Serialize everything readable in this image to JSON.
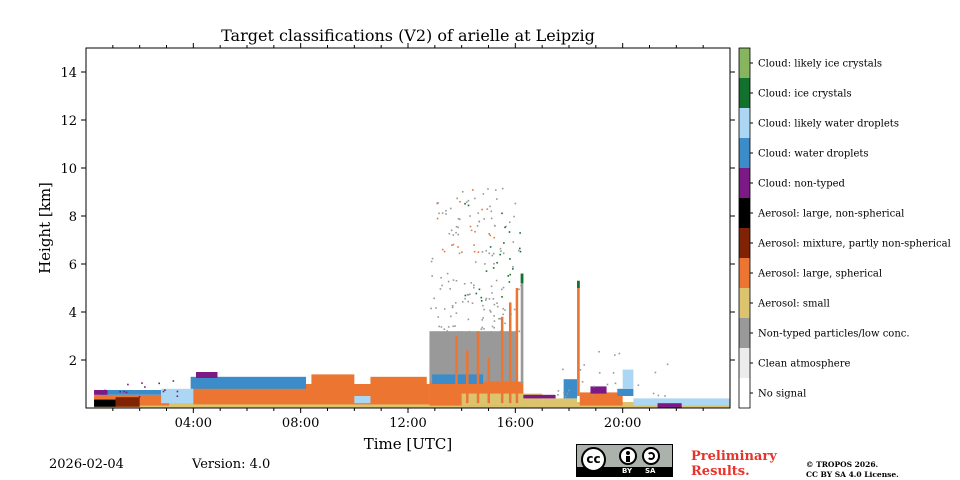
{
  "chart_data": {
    "type": "heatmap",
    "title": "Target classifications (V2) of arielle at Leipzig",
    "xlabel": "Time [UTC]",
    "ylabel": "Height [km]",
    "xlim": [
      0,
      24
    ],
    "ylim": [
      0,
      15
    ],
    "xticks": [
      {
        "value": 4,
        "label": "04:00"
      },
      {
        "value": 8,
        "label": "08:00"
      },
      {
        "value": 12,
        "label": "12:00"
      },
      {
        "value": 16,
        "label": "16:00"
      },
      {
        "value": 20,
        "label": "20:00"
      }
    ],
    "yticks": [
      {
        "value": 2,
        "label": "2"
      },
      {
        "value": 4,
        "label": "4"
      },
      {
        "value": 6,
        "label": "6"
      },
      {
        "value": 8,
        "label": "8"
      },
      {
        "value": 10,
        "label": "10"
      },
      {
        "value": 12,
        "label": "12"
      },
      {
        "value": 14,
        "label": "14"
      }
    ],
    "classes": [
      {
        "label": "No signal",
        "color": "#ffffff"
      },
      {
        "label": "Clean atmosphere",
        "color": "#ececec"
      },
      {
        "label": "Non-typed particles/low conc.",
        "color": "#999999"
      },
      {
        "label": "Aerosol: small",
        "color": "#dcc46f"
      },
      {
        "label": "Aerosol: large, spherical",
        "color": "#ec7631"
      },
      {
        "label": "Aerosol: mixture, partly non-spherical",
        "color": "#7f2304"
      },
      {
        "label": "Aerosol: large, non-spherical",
        "color": "#000000"
      },
      {
        "label": "Cloud: non-typed",
        "color": "#7b1a84"
      },
      {
        "label": "Cloud: water droplets",
        "color": "#3b8cc9"
      },
      {
        "label": "Cloud: likely water droplets",
        "color": "#acd7f4"
      },
      {
        "label": "Cloud: ice crystals",
        "color": "#12712c"
      },
      {
        "label": "Cloud: likely ice crystals",
        "color": "#86b55e"
      }
    ],
    "regions": [
      {
        "class": "Aerosol: small",
        "t0": 0.3,
        "t1": 24.0,
        "h0": 0.0,
        "h1": 0.25
      },
      {
        "class": "Aerosol: large, spherical",
        "t0": 0.3,
        "t1": 3.1,
        "h0": 0.1,
        "h1": 0.55
      },
      {
        "class": "Aerosol: large, non-spherical",
        "t0": 0.3,
        "t1": 1.1,
        "h0": 0.05,
        "h1": 0.35
      },
      {
        "class": "Aerosol: mixture, partly non-spherical",
        "t0": 1.1,
        "t1": 2.0,
        "h0": 0.05,
        "h1": 0.45
      },
      {
        "class": "Cloud: water droplets",
        "t0": 0.5,
        "t1": 2.8,
        "h0": 0.55,
        "h1": 0.75
      },
      {
        "class": "Cloud: non-typed",
        "t0": 0.3,
        "t1": 0.8,
        "h0": 0.55,
        "h1": 0.75
      },
      {
        "class": "Cloud: likely water droplets",
        "t0": 2.8,
        "t1": 4.2,
        "h0": 0.2,
        "h1": 0.8
      },
      {
        "class": "Aerosol: large, spherical",
        "t0": 4.0,
        "t1": 12.8,
        "h0": 0.15,
        "h1": 1.0
      },
      {
        "class": "Cloud: water droplets",
        "t0": 3.9,
        "t1": 8.2,
        "h0": 0.8,
        "h1": 1.3
      },
      {
        "class": "Cloud: non-typed",
        "t0": 4.1,
        "t1": 4.9,
        "h0": 1.25,
        "h1": 1.5
      },
      {
        "class": "Aerosol: large, spherical",
        "t0": 8.4,
        "t1": 10.0,
        "h0": 0.2,
        "h1": 1.4
      },
      {
        "class": "Aerosol: large, spherical",
        "t0": 10.6,
        "t1": 12.7,
        "h0": 0.2,
        "h1": 1.3
      },
      {
        "class": "Cloud: likely water droplets",
        "t0": 10.0,
        "t1": 10.6,
        "h0": 0.2,
        "h1": 0.5
      },
      {
        "class": "Non-typed particles/low conc.",
        "t0": 12.8,
        "t1": 16.1,
        "h0": 0.4,
        "h1": 3.2
      },
      {
        "class": "Aerosol: large, spherical",
        "t0": 12.8,
        "t1": 16.3,
        "h0": 0.1,
        "h1": 1.1
      },
      {
        "class": "Cloud: water droplets",
        "t0": 12.9,
        "t1": 14.8,
        "h0": 1.0,
        "h1": 1.4
      },
      {
        "class": "Aerosol: small",
        "t0": 14.0,
        "t1": 17.0,
        "h0": 0.1,
        "h1": 0.6
      },
      {
        "class": "Aerosol: small",
        "t0": 17.0,
        "t1": 18.3,
        "h0": 0.05,
        "h1": 0.4
      },
      {
        "class": "Cloud: non-typed",
        "t0": 16.3,
        "t1": 17.5,
        "h0": 0.4,
        "h1": 0.55
      },
      {
        "class": "Aerosol: large, spherical",
        "t0": 18.4,
        "t1": 20.0,
        "h0": 0.1,
        "h1": 0.65
      },
      {
        "class": "Cloud: non-typed",
        "t0": 18.8,
        "t1": 19.4,
        "h0": 0.6,
        "h1": 0.9
      },
      {
        "class": "Cloud: water droplets",
        "t0": 17.8,
        "t1": 18.3,
        "h0": 0.4,
        "h1": 1.2
      },
      {
        "class": "Cloud: water droplets",
        "t0": 19.8,
        "t1": 20.4,
        "h0": 0.5,
        "h1": 0.8
      },
      {
        "class": "Cloud: likely water droplets",
        "t0": 20.0,
        "t1": 20.4,
        "h0": 0.8,
        "h1": 1.6
      },
      {
        "class": "Cloud: likely water droplets",
        "t0": 20.4,
        "t1": 24.0,
        "h0": 0.1,
        "h1": 0.4
      },
      {
        "class": "Cloud: non-typed",
        "t0": 21.3,
        "t1": 22.2,
        "h0": 0.0,
        "h1": 0.2
      },
      {
        "class": "Aerosol: large, spherical",
        "t0": 18.3,
        "t1": 18.4,
        "h0": 0.5,
        "h1": 5.3
      },
      {
        "class": "Cloud: ice crystals",
        "t0": 18.3,
        "t1": 18.4,
        "h0": 5.0,
        "h1": 5.3
      },
      {
        "class": "Non-typed particles/low conc.",
        "t0": 16.2,
        "t1": 16.3,
        "h0": 1.0,
        "h1": 5.6
      },
      {
        "class": "Cloud: ice crystals",
        "t0": 16.2,
        "t1": 16.3,
        "h0": 5.2,
        "h1": 5.6
      }
    ],
    "scatter": [
      {
        "class": "Non-typed particles/low conc.",
        "t0": 12.8,
        "t1": 16.2,
        "h0": 3.2,
        "h1": 9.2,
        "n": 140
      },
      {
        "class": "Cloud: ice crystals",
        "t0": 14.0,
        "t1": 16.2,
        "h0": 4.5,
        "h1": 8.6,
        "n": 25
      },
      {
        "class": "Aerosol: large, spherical",
        "t0": 13.0,
        "t1": 15.2,
        "h0": 6.5,
        "h1": 9.2,
        "n": 18
      },
      {
        "class": "Non-typed particles/low conc.",
        "t0": 17.5,
        "t1": 22.0,
        "h0": 0.5,
        "h1": 2.5,
        "n": 25
      },
      {
        "class": "Cloud: non-typed",
        "t0": 0.2,
        "t1": 3.5,
        "h0": 0.5,
        "h1": 1.2,
        "n": 14
      }
    ],
    "columns": [
      {
        "class": "Aerosol: large, spherical",
        "t": 13.8,
        "h0": 0.2,
        "h1": 3.0
      },
      {
        "class": "Aerosol: large, spherical",
        "t": 14.2,
        "h0": 0.2,
        "h1": 2.4
      },
      {
        "class": "Aerosol: large, spherical",
        "t": 14.6,
        "h0": 0.2,
        "h1": 3.2
      },
      {
        "class": "Aerosol: large, spherical",
        "t": 15.0,
        "h0": 0.2,
        "h1": 2.1
      },
      {
        "class": "Aerosol: large, spherical",
        "t": 15.5,
        "h0": 0.2,
        "h1": 3.8
      },
      {
        "class": "Aerosol: large, spherical",
        "t": 15.8,
        "h0": 0.2,
        "h1": 4.4
      },
      {
        "class": "Aerosol: large, spherical",
        "t": 16.05,
        "h0": 0.2,
        "h1": 5.0
      }
    ]
  },
  "footer": {
    "date": "2026-02-04",
    "version": "Version: 4.0",
    "preliminary_line1": "Preliminary",
    "preliminary_line2": "Results.",
    "copyright_line1": "© TROPOS 2026.",
    "copyright_line2": "CC BY SA 4.0 License.",
    "badge_cc": "cc",
    "badge_by": "BY",
    "badge_sa": "SA",
    "preliminary_color": "#e8322a"
  }
}
